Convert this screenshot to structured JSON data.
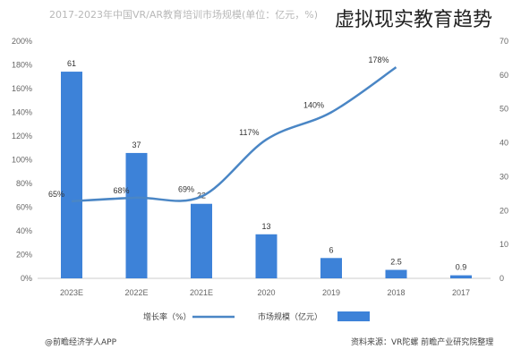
{
  "overlay_title": "虚拟现实教育趋势",
  "chart_data": {
    "type": "bar+line",
    "title": "2017-2023年中国VR/AR教育培训市场规模(单位：亿元，%)",
    "categories": [
      "2023E",
      "2022E",
      "2021E",
      "2020",
      "2019",
      "2018",
      "2017"
    ],
    "series": [
      {
        "name": "市场规模（亿元）",
        "kind": "bar",
        "axis": "right",
        "values": [
          61,
          37,
          22,
          13,
          6,
          2.5,
          0.9
        ],
        "value_labels": [
          "61",
          "37",
          "22",
          "13",
          "6",
          "2.5",
          "0.9"
        ]
      },
      {
        "name": "增长率（%）",
        "kind": "line",
        "axis": "left",
        "values": [
          65,
          68,
          69,
          117,
          140,
          178,
          null
        ],
        "value_labels": [
          "65%",
          "68%",
          "69%",
          "117%",
          "140%",
          "178%",
          ""
        ]
      }
    ],
    "left_axis": {
      "ylim": [
        0,
        200
      ],
      "ticks": [
        "0%",
        "20%",
        "40%",
        "60%",
        "80%",
        "100%",
        "120%",
        "140%",
        "160%",
        "180%",
        "200%"
      ]
    },
    "right_axis": {
      "ylim": [
        0,
        70
      ],
      "ticks": [
        "0",
        "10",
        "20",
        "30",
        "40",
        "50",
        "60",
        "70"
      ]
    },
    "grid": false,
    "legend_position": "bottom",
    "colors": {
      "bar": "#3d82d8",
      "line": "#4a86c5"
    }
  },
  "source": "资料来源：VR陀螺 前瞻产业研究院整理",
  "credit": "@前瞻经济学人APP"
}
